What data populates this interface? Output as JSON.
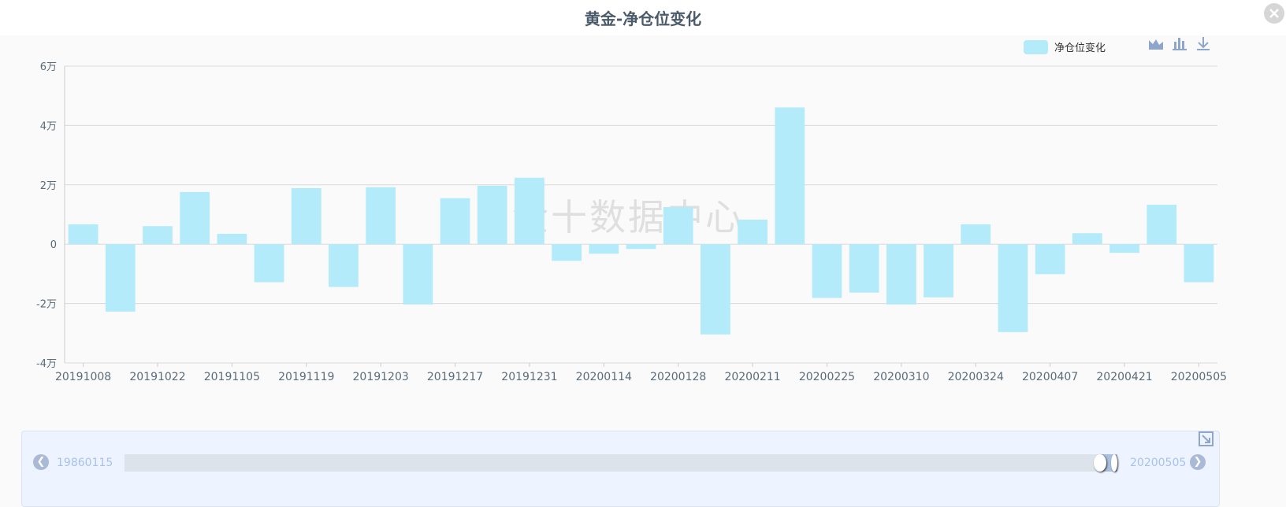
{
  "title": "黄金-净仓位变化",
  "watermark": "金十数据中心",
  "toolbar": {
    "icons": [
      "area-chart-icon",
      "bar-chart-icon",
      "download-icon"
    ]
  },
  "slider": {
    "start_label": "19860115",
    "end_label": "20200505"
  },
  "colors": {
    "bar": "#b3ebfa",
    "grid": "#d9d9d9",
    "axis_text": "#5a6b7b"
  },
  "chart_data": {
    "type": "bar",
    "title": "黄金-净仓位变化",
    "legend": {
      "entries": [
        "净仓位变化"
      ],
      "position": "top-right"
    },
    "grid": true,
    "ylim": [
      -40000,
      60000
    ],
    "y_ticks": [
      -40000,
      -20000,
      0,
      20000,
      40000,
      60000
    ],
    "y_tick_labels": [
      "-4万",
      "-2万",
      "0",
      "2万",
      "4万",
      "6万"
    ],
    "x_tick_labels": [
      "20191008",
      "20191022",
      "20191105",
      "20191119",
      "20191203",
      "20191217",
      "20191231",
      "20200114",
      "20200128",
      "20200211",
      "20200225",
      "20200310",
      "20200324",
      "20200407",
      "20200421",
      "20200505"
    ],
    "categories": [
      "20191008",
      "20191015",
      "20191022",
      "20191029",
      "20191105",
      "20191112",
      "20191119",
      "20191126",
      "20191203",
      "20191210",
      "20191217",
      "20191224",
      "20191231",
      "20200107",
      "20200114",
      "20200121",
      "20200128",
      "20200204",
      "20200211",
      "20200218",
      "20200225",
      "20200303",
      "20200310",
      "20200317",
      "20200324",
      "20200331",
      "20200407",
      "20200414",
      "20200421",
      "20200428",
      "20200505"
    ],
    "series": [
      {
        "name": "净仓位变化",
        "values": [
          6700,
          -22700,
          6100,
          17600,
          3500,
          -12800,
          18900,
          -14400,
          19200,
          -20300,
          15500,
          19700,
          22400,
          -5600,
          -3200,
          -1600,
          12500,
          -30400,
          8300,
          46100,
          -18100,
          -16300,
          -20300,
          -17900,
          6700,
          -29600,
          -10100,
          3700,
          -2900,
          13300,
          -12800
        ]
      }
    ]
  }
}
